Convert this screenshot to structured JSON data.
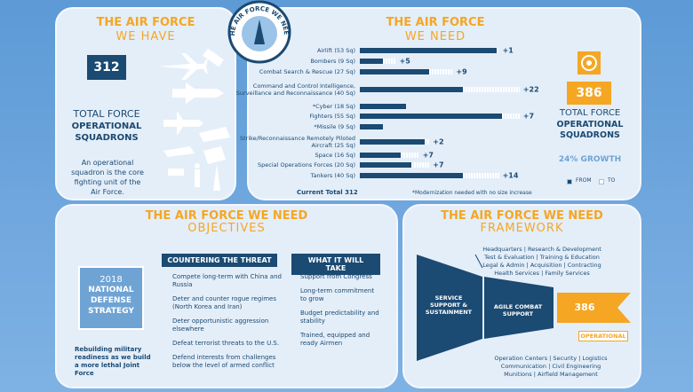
{
  "have": {
    "title": "THE AIR FORCE",
    "subtitle": "WE HAVE",
    "count": "312",
    "label_top": "TOTAL FORCE",
    "label_main": "OPERATIONAL SQUADRONS",
    "note": "An operational squadron is the core fighting unit of the Air Force."
  },
  "seal": "THE AIR FORCE WE NEED",
  "need": {
    "title": "THE AIR FORCE",
    "subtitle": "WE NEED",
    "current_total": "Current Total 312",
    "footnote": "*Modernization needed with no size increase",
    "count": "386",
    "label_top": "TOTAL FORCE",
    "label_main": "OPERATIONAL SQUADRONS",
    "growth": "24% GROWTH"
  },
  "chart_data": {
    "type": "bar",
    "orientation": "horizontal",
    "categories": [
      "Airlift (53 Sq)",
      "Bombers (9 Sq)",
      "Combat Search & Rescue (27 Sq)",
      "Command and Control Intelligence, Surveillance and Reconnaissance (40 Sq)",
      "*Cyber (18 Sq)",
      "Fighters (55 Sq)",
      "*Missile (9 Sq)",
      "Strike/Reconnaissance Remotely Piloted Aircraft (25 Sq)",
      "Space (16 Sq)",
      "Special Operations Forces (20 Sq)",
      "Tankers (40 Sq)"
    ],
    "series": [
      {
        "name": "FROM",
        "color": "#1b4a72",
        "values": [
          53,
          9,
          27,
          40,
          18,
          55,
          9,
          25,
          16,
          20,
          40
        ]
      },
      {
        "name": "TO",
        "color": "#ffffff",
        "values": [
          1,
          5,
          9,
          22,
          null,
          7,
          null,
          2,
          7,
          7,
          14
        ],
        "value_labels": [
          "+1",
          "+5",
          "+9",
          "+22",
          null,
          "+7",
          null,
          "+2",
          "+7",
          "+7",
          "+14"
        ]
      }
    ]
  },
  "objectives": {
    "title": "THE AIR FORCE WE NEED",
    "subtitle": "OBJECTIVES",
    "strategy_year": "2018",
    "strategy_name": "NATIONAL DEFENSE STRATEGY",
    "strategy_note": "Rebuilding military readiness as we build a more lethal Joint Force",
    "threat_heading": "COUNTERING THE THREAT",
    "threat_items": [
      "Compete long-term with China and Russia",
      "Deter and counter rogue regimes (North Korea and Iran)",
      "Deter opportunistic aggression elsewhere",
      "Defeat terrorist threats to the U.S.",
      "Defend interests from challenges below the level of armed conflict"
    ],
    "take_heading": "WHAT IT WILL TAKE",
    "take_items": [
      "Support from Congress",
      "Long-term commitment to grow",
      "Budget predictability and stability",
      "Trained, equipped and ready Airmen"
    ]
  },
  "framework": {
    "title": "THE AIR FORCE WE NEED",
    "subtitle": "FRAMEWORK",
    "top_lines": [
      "Headquarters | Research & Development",
      "Test & Evaluation | Training & Education",
      "Legal & Admin | Acquisition | Contracting",
      "Health Services | Family Services"
    ],
    "stage1": "SERVICE SUPPORT & SUSTAINMENT",
    "stage2": "AGILE COMBAT SUPPORT",
    "count": "386",
    "operational": "OPERATIONAL",
    "bottom_lines": [
      "Operation Centers | Security | Logistics",
      "Communication | Civil Engineering",
      "Munitions | Airfield Management"
    ]
  }
}
